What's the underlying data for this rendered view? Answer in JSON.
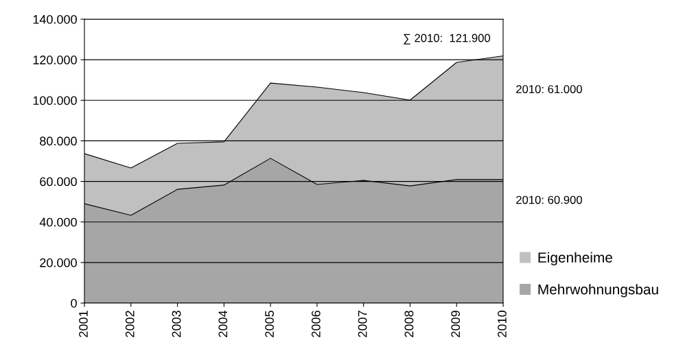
{
  "chart_data": {
    "type": "area",
    "stacked": true,
    "categories": [
      "2001",
      "2002",
      "2003",
      "2004",
      "2005",
      "2006",
      "2007",
      "2008",
      "2009",
      "2010"
    ],
    "series": [
      {
        "name": "Mehrwohnungsbau",
        "color": "#a6a6a6",
        "values": [
          49000,
          43300,
          56100,
          58200,
          71400,
          58500,
          60500,
          57800,
          60900,
          60900
        ]
      },
      {
        "name": "Eigenheime",
        "color": "#c0c0c0",
        "values": [
          24700,
          23300,
          22700,
          21300,
          37100,
          48000,
          43300,
          42300,
          57800,
          61000
        ]
      }
    ],
    "ylim": [
      0,
      140000
    ],
    "yticks": [
      {
        "value": 0,
        "label": "0"
      },
      {
        "value": 20000,
        "label": "20.000"
      },
      {
        "value": 40000,
        "label": "40.000"
      },
      {
        "value": 60000,
        "label": "60.000"
      },
      {
        "value": 80000,
        "label": "80.000"
      },
      {
        "value": 100000,
        "label": "100.000"
      },
      {
        "value": 120000,
        "label": "120.000"
      },
      {
        "value": 140000,
        "label": "140.000"
      }
    ],
    "grid": "y",
    "legend": "right",
    "annotations": [
      "∑ 2010:  121.900",
      "2010: 61.000",
      "2010: 60.900"
    ]
  }
}
